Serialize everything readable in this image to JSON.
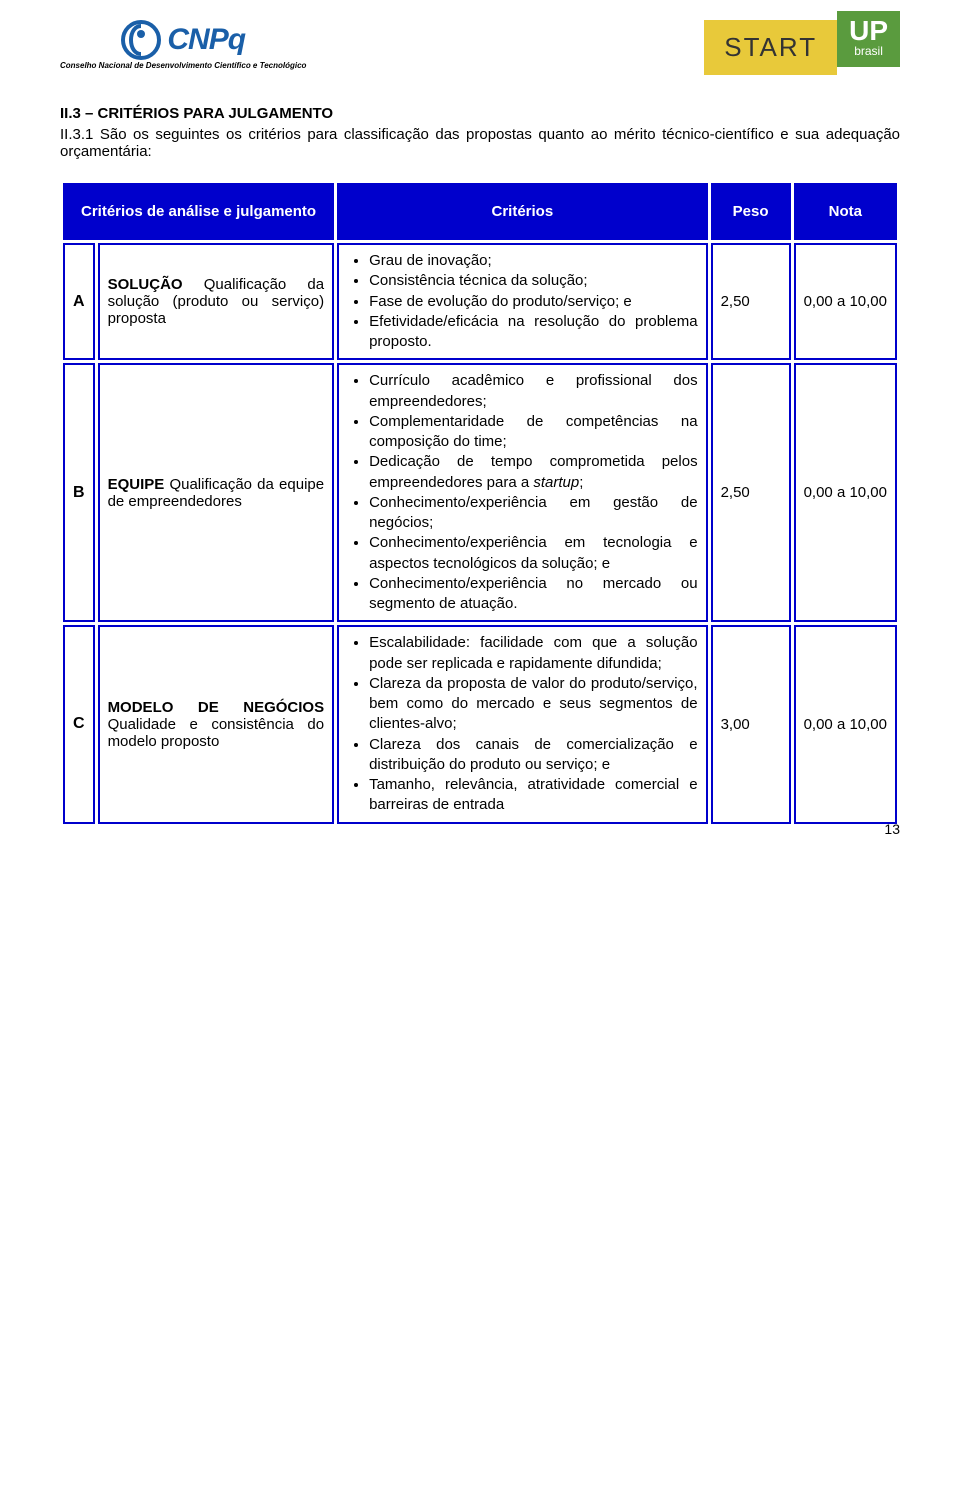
{
  "logos": {
    "cnpq_name": "CNPq",
    "cnpq_subtext": "Conselho Nacional de Desenvolvimento\nCientífico e Tecnológico",
    "start_text": "START",
    "up_text": "UP",
    "brasil_text": "brasil"
  },
  "section": {
    "number_title": "II.3 – CRITÉRIOS PARA JULGAMENTO",
    "body_number": "II.3.1",
    "body_text": " São os seguintes os critérios para classificação das propostas quanto ao mérito técnico-científico e sua adequação orçamentária:"
  },
  "table": {
    "headers": {
      "analise": "Critérios de análise e julgamento",
      "criterios": "Critérios",
      "peso": "Peso",
      "nota": "Nota"
    },
    "rows": [
      {
        "letter": "A",
        "cat_title": "SOLUÇÃO",
        "cat_desc": "Qualificação da solução (produto ou serviço) proposta",
        "criterios": [
          "Grau de inovação;",
          "Consistência técnica da solução;",
          "Fase de evolução do produto/serviço; e",
          "Efetividade/eficácia na resolução do problema proposto."
        ],
        "peso": "2,50",
        "nota": "0,00 a 10,00"
      },
      {
        "letter": "B",
        "cat_title": "EQUIPE",
        "cat_desc": "Qualificação da equipe de empreendedores",
        "criterios": [
          "Currículo acadêmico e profissional dos empreendedores;",
          "Complementaridade de competências na composição do time;",
          "Dedicação de tempo comprometida pelos empreendedores para a startup;",
          "Conhecimento/experiência em gestão de negócios;",
          "Conhecimento/experiência em tecnologia e aspectos tecnológicos da solução; e",
          "Conhecimento/experiência no mercado ou segmento de atuação."
        ],
        "peso": "2,50",
        "nota": "0,00 a 10,00"
      },
      {
        "letter": "C",
        "cat_title": "MODELO DE NEGÓCIOS",
        "cat_desc": "Qualidade e consistência do modelo proposto",
        "criterios": [
          "Escalabilidade: facilidade com que a solução pode ser replicada e rapidamente difundida;",
          "Clareza da proposta de valor do produto/serviço, bem como do mercado e seus segmentos de clientes-alvo;",
          "Clareza dos canais de comercialização e distribuição do produto ou serviço; e",
          "Tamanho, relevância, atratividade comercial e barreiras de entrada"
        ],
        "peso": "3,00",
        "nota": "0,00 a 10,00"
      }
    ]
  },
  "page_number": "13",
  "colors": {
    "header_bg": "#0000cc",
    "header_fg": "#ffffff",
    "border": "#0000cc",
    "cnpq_blue": "#1a5fa8",
    "start_yellow": "#e8c93a",
    "up_green": "#5a9b3e"
  }
}
